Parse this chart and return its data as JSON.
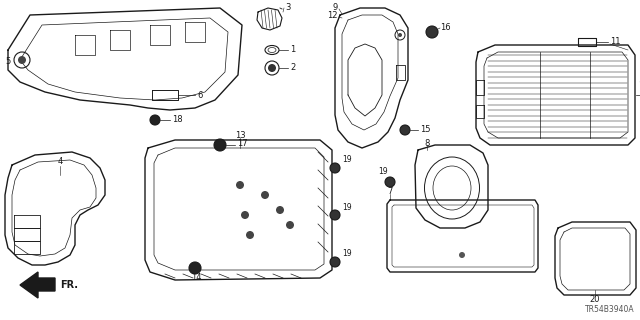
{
  "background_color": "#ffffff",
  "line_color": "#1a1a1a",
  "diagram_code": "TR54B3940A",
  "fig_w": 6.4,
  "fig_h": 3.2,
  "dpi": 100,
  "lw_main": 0.9,
  "lw_thin": 0.5,
  "label_fontsize": 6.0
}
